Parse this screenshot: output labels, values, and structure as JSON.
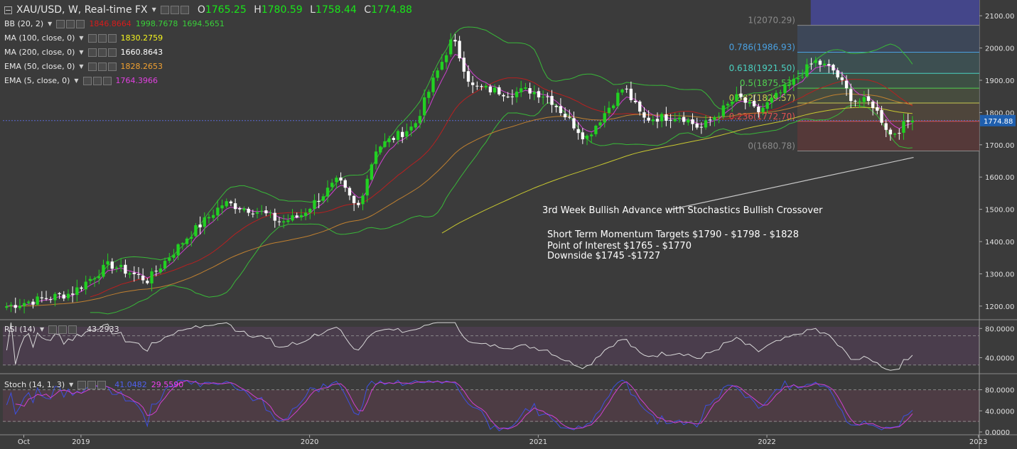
{
  "header": {
    "symbol": "XAU/USD, W, Real-time FX",
    "open_label": "O",
    "open": "1765.25",
    "high_label": "H",
    "high": "1780.59",
    "low_label": "L",
    "low": "1758.44",
    "close_label": "C",
    "close": "1774.88"
  },
  "indicators": [
    {
      "label": "BB (20, 2)",
      "values": [
        "1846.8664",
        "1998.7678",
        "1694.5651"
      ],
      "colors": [
        "#d81b1b",
        "#39d039",
        "#39d039"
      ]
    },
    {
      "label": "MA (100, close, 0)",
      "values": [
        "1830.2759"
      ],
      "colors": [
        "#f5f51e"
      ]
    },
    {
      "label": "MA (200, close, 0)",
      "values": [
        "1660.8643"
      ],
      "colors": [
        "#ffffff"
      ]
    },
    {
      "label": "EMA (50, close, 0)",
      "values": [
        "1828.2653"
      ],
      "colors": [
        "#f0a030"
      ]
    },
    {
      "label": "EMA (5, close, 0)",
      "values": [
        "1764.3966"
      ],
      "colors": [
        "#e040e0"
      ]
    }
  ],
  "rsi": {
    "label": "RSI (14)",
    "value": "43.2933",
    "ticks": [
      "80.0000",
      "40.0000"
    ]
  },
  "stoch": {
    "label": "Stoch (14, 1, 3)",
    "k": "41.0482",
    "d": "29.5590",
    "ticks": [
      "80.0000",
      "40.0000",
      "0.0000"
    ]
  },
  "price_axis": {
    "ticks": [
      "2100.00",
      "2000.00",
      "1900.00",
      "1800.00",
      "1700.00",
      "1600.00",
      "1500.00",
      "1400.00",
      "1300.00",
      "1200.00"
    ],
    "current": "1774.88"
  },
  "time_axis": {
    "labels": [
      "Oct",
      "2019",
      "2020",
      "2021",
      "2022",
      "2023"
    ]
  },
  "fib": [
    {
      "label": "1(2070.29)",
      "value": 2070.29,
      "color": "#8a8a8a"
    },
    {
      "label": "0.786(1986.93)",
      "value": 1986.93,
      "color": "#4aa0e0"
    },
    {
      "label": "0.618(1921.50)",
      "value": 1921.5,
      "color": "#4ad0c0"
    },
    {
      "label": "0.5(1875.53)",
      "value": 1875.53,
      "color": "#50d050"
    },
    {
      "label": "0.382(1829.57)",
      "value": 1829.57,
      "color": "#c8c850"
    },
    {
      "label": "0.236(1772.70)",
      "value": 1772.7,
      "color": "#e05050"
    },
    {
      "label": "0(1680.78)",
      "value": 1680.78,
      "color": "#8a8a8a"
    }
  ],
  "annotations": {
    "headline": "3rd Week Bullish Advance with Stochastics Bullish Crossover",
    "line1": "Short Term Momentum Targets $1790 - $1798 - $1828",
    "line2": "Point of Interest $1765 - $1770",
    "line3": "Downside $1745 -$1727"
  },
  "chart_data": {
    "type": "candlestick",
    "symbol": "XAU/USD",
    "interval": "W",
    "ylim": [
      1160,
      2140
    ],
    "x_range": [
      "2018-09",
      "2022-12"
    ],
    "anchors": [
      {
        "date": "2018-09",
        "price": 1200
      },
      {
        "date": "2018-12",
        "price": 1240
      },
      {
        "date": "2019-02",
        "price": 1330
      },
      {
        "date": "2019-04",
        "price": 1280
      },
      {
        "date": "2019-06",
        "price": 1410
      },
      {
        "date": "2019-08",
        "price": 1520
      },
      {
        "date": "2019-10",
        "price": 1490
      },
      {
        "date": "2019-11",
        "price": 1460
      },
      {
        "date": "2019-12",
        "price": 1480
      },
      {
        "date": "2020-02",
        "price": 1590
      },
      {
        "date": "2020-03",
        "price": 1500
      },
      {
        "date": "2020-04",
        "price": 1690
      },
      {
        "date": "2020-06",
        "price": 1760
      },
      {
        "date": "2020-07",
        "price": 1900
      },
      {
        "date": "2020-08",
        "price": 2030
      },
      {
        "date": "2020-09",
        "price": 1880
      },
      {
        "date": "2020-11",
        "price": 1860
      },
      {
        "date": "2020-12",
        "price": 1870
      },
      {
        "date": "2021-01",
        "price": 1850
      },
      {
        "date": "2021-03",
        "price": 1720
      },
      {
        "date": "2021-05",
        "price": 1880
      },
      {
        "date": "2021-06",
        "price": 1780
      },
      {
        "date": "2021-08",
        "price": 1790
      },
      {
        "date": "2021-09",
        "price": 1750
      },
      {
        "date": "2021-11",
        "price": 1850
      },
      {
        "date": "2021-12",
        "price": 1800
      },
      {
        "date": "2022-02",
        "price": 1900
      },
      {
        "date": "2022-03",
        "price": 1960
      },
      {
        "date": "2022-04",
        "price": 1930
      },
      {
        "date": "2022-05",
        "price": 1840
      },
      {
        "date": "2022-06",
        "price": 1830
      },
      {
        "date": "2022-07",
        "price": 1730
      },
      {
        "date": "2022-08",
        "price": 1775
      }
    ],
    "last_close": 1774.88
  }
}
